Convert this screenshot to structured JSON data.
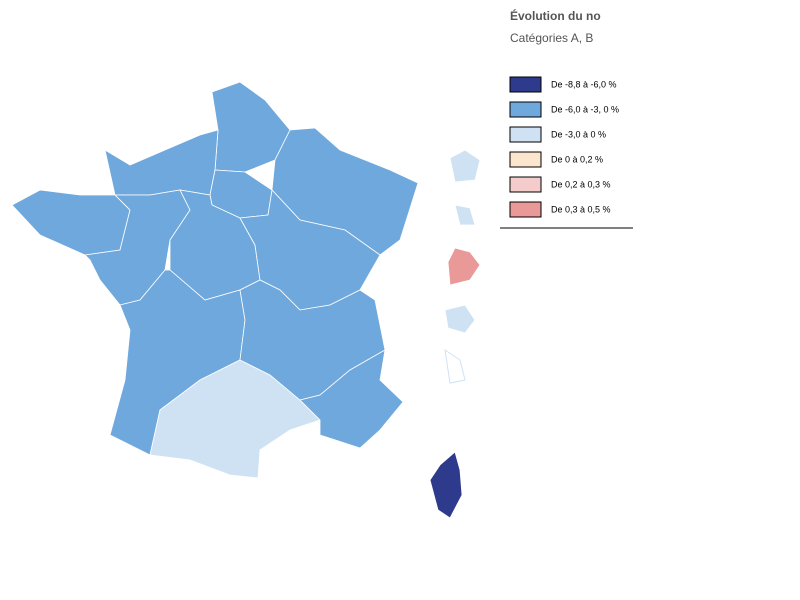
{
  "title": "Évolution du no",
  "subtitle": "Catégories A, B",
  "legend": [
    {
      "label": "De -8,8 à -6,0 %",
      "color": "#2e3a8c"
    },
    {
      "label": "De -6,0 à -3, 0 %",
      "color": "#6fa8dc"
    },
    {
      "label": "De -3,0 à 0 %",
      "color": "#cfe2f3"
    },
    {
      "label": "De 0 à 0,2 %",
      "color": "#fce5cd"
    },
    {
      "label": "De 0,2 à 0,3 %",
      "color": "#f4cccc"
    },
    {
      "label": "De 0,3 à 0,5 %",
      "color": "#ea9999"
    }
  ]
}
